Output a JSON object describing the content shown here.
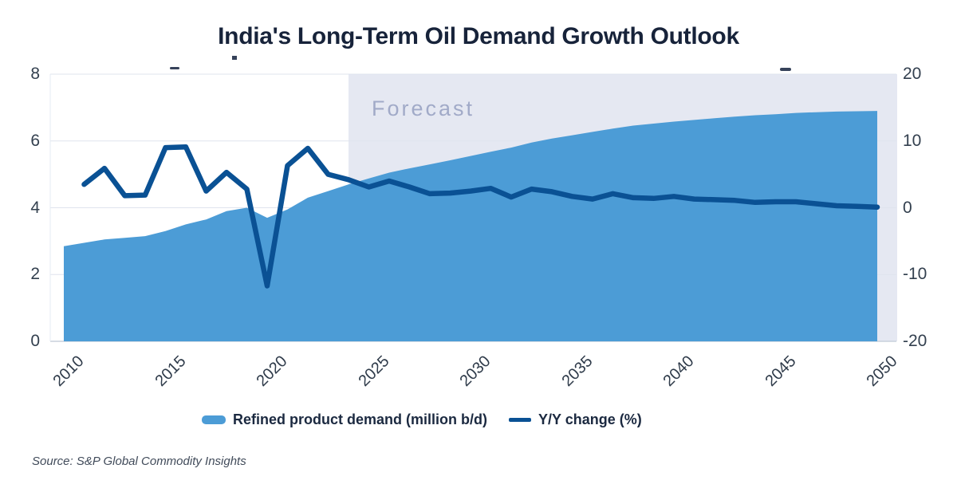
{
  "title": "India's Long-Term Oil Demand Growth Outlook",
  "forecast_label": "Forecast",
  "source": "Source: S&P Global Commodity Insights",
  "legend": {
    "area_label": "Refined product demand (million b/d)",
    "line_label": "Y/Y change (%)"
  },
  "colors": {
    "area": "#4c9cd6",
    "line": "#0a5194",
    "forecast_band": "#e5e8f2",
    "forecast_text": "#a1aac8",
    "grid": "#dfe4ee",
    "baseline": "#c9d1dc",
    "axis_text": "#33404f",
    "title_text": "#17233a",
    "artifact": "#36425a"
  },
  "chart_data": {
    "type": "area+line",
    "title": "India's Long-Term Oil Demand Growth Outlook",
    "x": [
      2010,
      2011,
      2012,
      2013,
      2014,
      2015,
      2016,
      2017,
      2018,
      2019,
      2020,
      2021,
      2022,
      2023,
      2024,
      2025,
      2026,
      2027,
      2028,
      2029,
      2030,
      2031,
      2032,
      2033,
      2034,
      2035,
      2036,
      2037,
      2038,
      2039,
      2040,
      2041,
      2042,
      2043,
      2044,
      2045,
      2046,
      2047,
      2048,
      2049,
      2050
    ],
    "series": [
      {
        "name": "Refined product demand (million b/d)",
        "type": "area",
        "axis": "left",
        "values": [
          2.85,
          2.95,
          3.05,
          3.1,
          3.15,
          3.3,
          3.5,
          3.65,
          3.9,
          4.0,
          3.7,
          3.95,
          4.3,
          4.5,
          4.7,
          4.88,
          5.05,
          5.18,
          5.3,
          5.42,
          5.55,
          5.68,
          5.8,
          5.95,
          6.07,
          6.17,
          6.27,
          6.37,
          6.46,
          6.52,
          6.58,
          6.63,
          6.68,
          6.73,
          6.77,
          6.8,
          6.84,
          6.86,
          6.88,
          6.89,
          6.9
        ]
      },
      {
        "name": "Y/Y change (%)",
        "type": "line",
        "axis": "right",
        "values": [
          null,
          3.5,
          5.9,
          1.8,
          1.9,
          9.0,
          9.1,
          2.5,
          5.3,
          2.8,
          -11.7,
          6.3,
          8.9,
          5.0,
          4.2,
          3.1,
          4.0,
          3.1,
          2.1,
          2.2,
          2.5,
          2.9,
          1.6,
          2.8,
          2.4,
          1.7,
          1.3,
          2.1,
          1.5,
          1.4,
          1.7,
          1.3,
          1.2,
          1.1,
          0.8,
          0.9,
          0.9,
          0.6,
          0.3,
          0.2,
          0.1
        ]
      }
    ],
    "left_axis": {
      "ticks": [
        0,
        2,
        4,
        6,
        8
      ],
      "range": [
        0,
        8
      ]
    },
    "right_axis": {
      "ticks": [
        -20,
        -10,
        0,
        10,
        20
      ],
      "range": [
        -20,
        20
      ]
    },
    "x_axis": {
      "ticks": [
        2010,
        2015,
        2020,
        2025,
        2030,
        2035,
        2040,
        2045,
        2050
      ]
    },
    "forecast_start": 2024,
    "grid": true,
    "legend_position": "bottom"
  }
}
